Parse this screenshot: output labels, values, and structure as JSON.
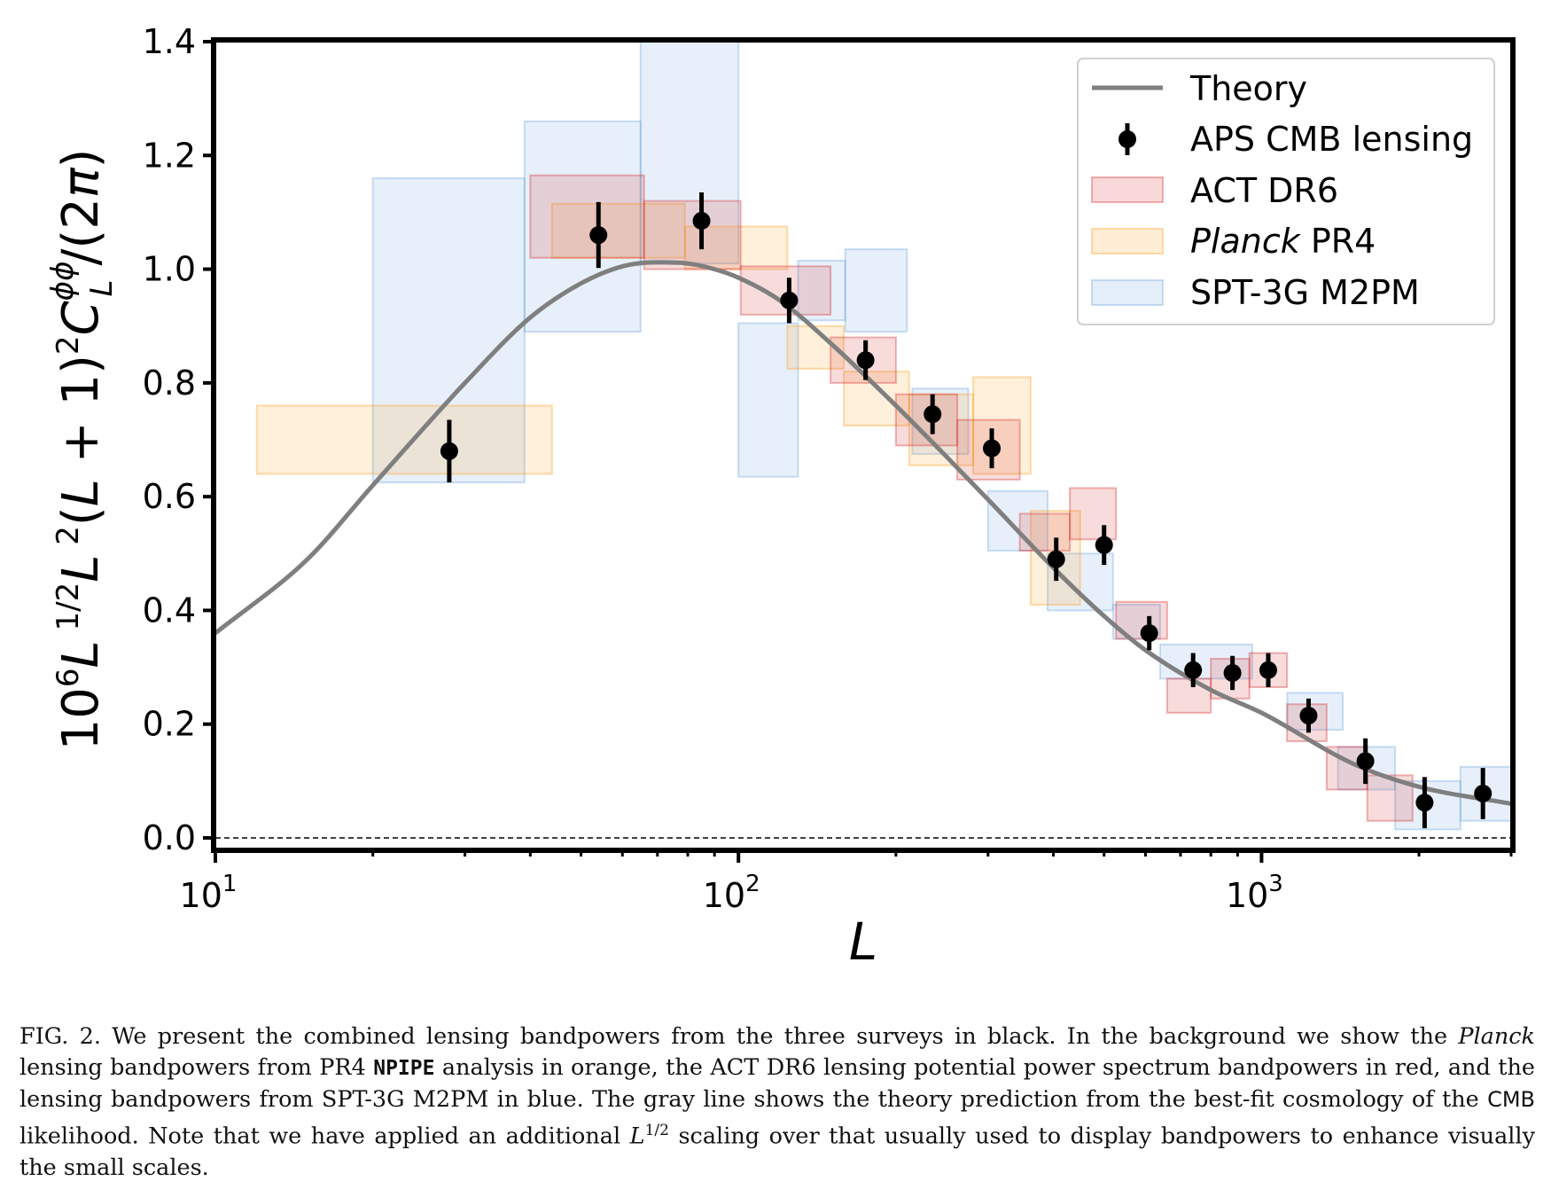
{
  "chart_data": {
    "type": "scatter",
    "xscale": "log",
    "xlim": [
      10,
      3000
    ],
    "ylim": [
      0.0,
      1.4
    ],
    "xlabel": "L",
    "ylabel": "10^6 L^{1/2} L^2 (L+1)^2 C_L^{φφ} / (2π)",
    "x_tick_labels": [
      {
        "base": "10",
        "exp": "1",
        "value": 10
      },
      {
        "base": "10",
        "exp": "2",
        "value": 100
      },
      {
        "base": "10",
        "exp": "3",
        "value": 1000
      }
    ],
    "y_ticks": [
      "0.0",
      "0.2",
      "0.4",
      "0.6",
      "0.8",
      "1.0",
      "1.2",
      "1.4"
    ],
    "grid": false,
    "legend_position": "top-right",
    "zero_line": "dashed",
    "series": [
      {
        "name": "Theory",
        "kind": "line",
        "color": "#7f7f7f",
        "x": [
          10,
          15,
          20,
          30,
          40,
          50,
          60,
          70,
          80,
          90,
          100,
          120,
          150,
          200,
          250,
          300,
          400,
          500,
          600,
          800,
          1000,
          1500,
          2000,
          3000
        ],
        "y": [
          0.36,
          0.49,
          0.62,
          0.8,
          0.915,
          0.975,
          1.005,
          1.012,
          1.01,
          1.0,
          0.985,
          0.945,
          0.87,
          0.76,
          0.67,
          0.595,
          0.475,
          0.39,
          0.33,
          0.26,
          0.22,
          0.13,
          0.09,
          0.06
        ]
      },
      {
        "name": "APS CMB lensing",
        "kind": "errorbar",
        "color": "#000000",
        "x": [
          28,
          54,
          85,
          125,
          175,
          235,
          305,
          405,
          500,
          610,
          740,
          880,
          1030,
          1230,
          1580,
          2050,
          2650
        ],
        "y": [
          0.68,
          1.06,
          1.085,
          0.945,
          0.84,
          0.745,
          0.685,
          0.49,
          0.515,
          0.36,
          0.295,
          0.29,
          0.295,
          0.215,
          0.135,
          0.062,
          0.078
        ],
        "yerr": [
          0.055,
          0.058,
          0.05,
          0.04,
          0.035,
          0.035,
          0.035,
          0.038,
          0.035,
          0.03,
          0.03,
          0.03,
          0.03,
          0.03,
          0.04,
          0.045,
          0.045
        ]
      },
      {
        "name": "ACT DR6",
        "kind": "bandpower-boxes",
        "color": "#d62728",
        "boxes": [
          {
            "x0": 40,
            "x1": 66,
            "y0": 1.02,
            "y1": 1.165
          },
          {
            "x0": 66,
            "x1": 101,
            "y0": 1.0,
            "y1": 1.12
          },
          {
            "x0": 101,
            "x1": 150,
            "y0": 0.92,
            "y1": 1.005
          },
          {
            "x0": 150,
            "x1": 200,
            "y0": 0.8,
            "y1": 0.88
          },
          {
            "x0": 200,
            "x1": 262,
            "y0": 0.69,
            "y1": 0.78
          },
          {
            "x0": 262,
            "x1": 345,
            "y0": 0.63,
            "y1": 0.735
          },
          {
            "x0": 345,
            "x1": 430,
            "y0": 0.505,
            "y1": 0.57
          },
          {
            "x0": 430,
            "x1": 527,
            "y0": 0.525,
            "y1": 0.615
          },
          {
            "x0": 527,
            "x1": 660,
            "y0": 0.35,
            "y1": 0.415
          },
          {
            "x0": 660,
            "x1": 800,
            "y0": 0.22,
            "y1": 0.28
          },
          {
            "x0": 800,
            "x1": 948,
            "y0": 0.245,
            "y1": 0.315
          },
          {
            "x0": 948,
            "x1": 1119,
            "y0": 0.265,
            "y1": 0.325
          },
          {
            "x0": 1119,
            "x1": 1332,
            "y0": 0.17,
            "y1": 0.235
          },
          {
            "x0": 1332,
            "x1": 1593,
            "y0": 0.085,
            "y1": 0.16
          },
          {
            "x0": 1593,
            "x1": 1944,
            "y0": 0.03,
            "y1": 0.11
          }
        ]
      },
      {
        "name": "Planck PR4",
        "kind": "bandpower-boxes",
        "color": "#ff9f1c",
        "boxes": [
          {
            "x0": 12,
            "x1": 44,
            "y0": 0.64,
            "y1": 0.76
          },
          {
            "x0": 44,
            "x1": 79,
            "y0": 1.02,
            "y1": 1.115
          },
          {
            "x0": 79,
            "x1": 124,
            "y0": 1.0,
            "y1": 1.075
          },
          {
            "x0": 124,
            "x1": 159,
            "y0": 0.825,
            "y1": 0.9
          },
          {
            "x0": 159,
            "x1": 212,
            "y0": 0.725,
            "y1": 0.82
          },
          {
            "x0": 212,
            "x1": 281,
            "y0": 0.655,
            "y1": 0.78
          },
          {
            "x0": 281,
            "x1": 362,
            "y0": 0.64,
            "y1": 0.81
          },
          {
            "x0": 362,
            "x1": 450,
            "y0": 0.41,
            "y1": 0.575
          }
        ]
      },
      {
        "name": "SPT-3G M2PM",
        "kind": "bandpower-boxes",
        "color": "#6ba4dd",
        "boxes": [
          {
            "x0": 20,
            "x1": 39,
            "y0": 0.625,
            "y1": 1.16
          },
          {
            "x0": 39,
            "x1": 65,
            "y0": 0.89,
            "y1": 1.26
          },
          {
            "x0": 65,
            "x1": 100,
            "y0": 1.01,
            "y1": 1.4
          },
          {
            "x0": 100,
            "x1": 130,
            "y0": 0.635,
            "y1": 0.905
          },
          {
            "x0": 130,
            "x1": 160,
            "y0": 0.91,
            "y1": 1.015
          },
          {
            "x0": 160,
            "x1": 210,
            "y0": 0.89,
            "y1": 1.035
          },
          {
            "x0": 215,
            "x1": 275,
            "y0": 0.675,
            "y1": 0.79
          },
          {
            "x0": 300,
            "x1": 390,
            "y0": 0.505,
            "y1": 0.61
          },
          {
            "x0": 390,
            "x1": 520,
            "y0": 0.4,
            "y1": 0.5
          },
          {
            "x0": 520,
            "x1": 640,
            "y0": 0.35,
            "y1": 0.41
          },
          {
            "x0": 640,
            "x1": 960,
            "y0": 0.28,
            "y1": 0.34
          },
          {
            "x0": 1120,
            "x1": 1430,
            "y0": 0.19,
            "y1": 0.255
          },
          {
            "x0": 1400,
            "x1": 1800,
            "y0": 0.085,
            "y1": 0.16
          },
          {
            "x0": 1800,
            "x1": 2400,
            "y0": 0.015,
            "y1": 0.1
          },
          {
            "x0": 2400,
            "x1": 3200,
            "y0": 0.03,
            "y1": 0.125
          }
        ]
      }
    ]
  },
  "legend": {
    "theory": "Theory",
    "aps": "APS CMB lensing",
    "act": "ACT DR6",
    "planck_italic": "Planck",
    "planck_rest": " PR4",
    "spt": "SPT-3G M2PM"
  },
  "caption": {
    "p1": "FIG. 2. We present the combined lensing bandpowers from the three surveys in black. In the background we show the ",
    "planck": "Planck",
    "p2": " lensing bandpowers from PR4 ",
    "npipe": "NPIPE",
    "p3": " analysis in orange, the ACT DR6 lensing potential power spectrum bandpowers in red, and the lensing bandpowers from SPT-3G M2PM in blue. The gray line shows the theory prediction from the best-fit cosmology of the ",
    "cmb": "CMB",
    "p4": " likelihood. Note that we have applied an additional ",
    "l_symbol": "L",
    "l_exp": "1/2",
    "p5": " scaling over that usually used to display bandpowers to enhance visually the small scales."
  }
}
